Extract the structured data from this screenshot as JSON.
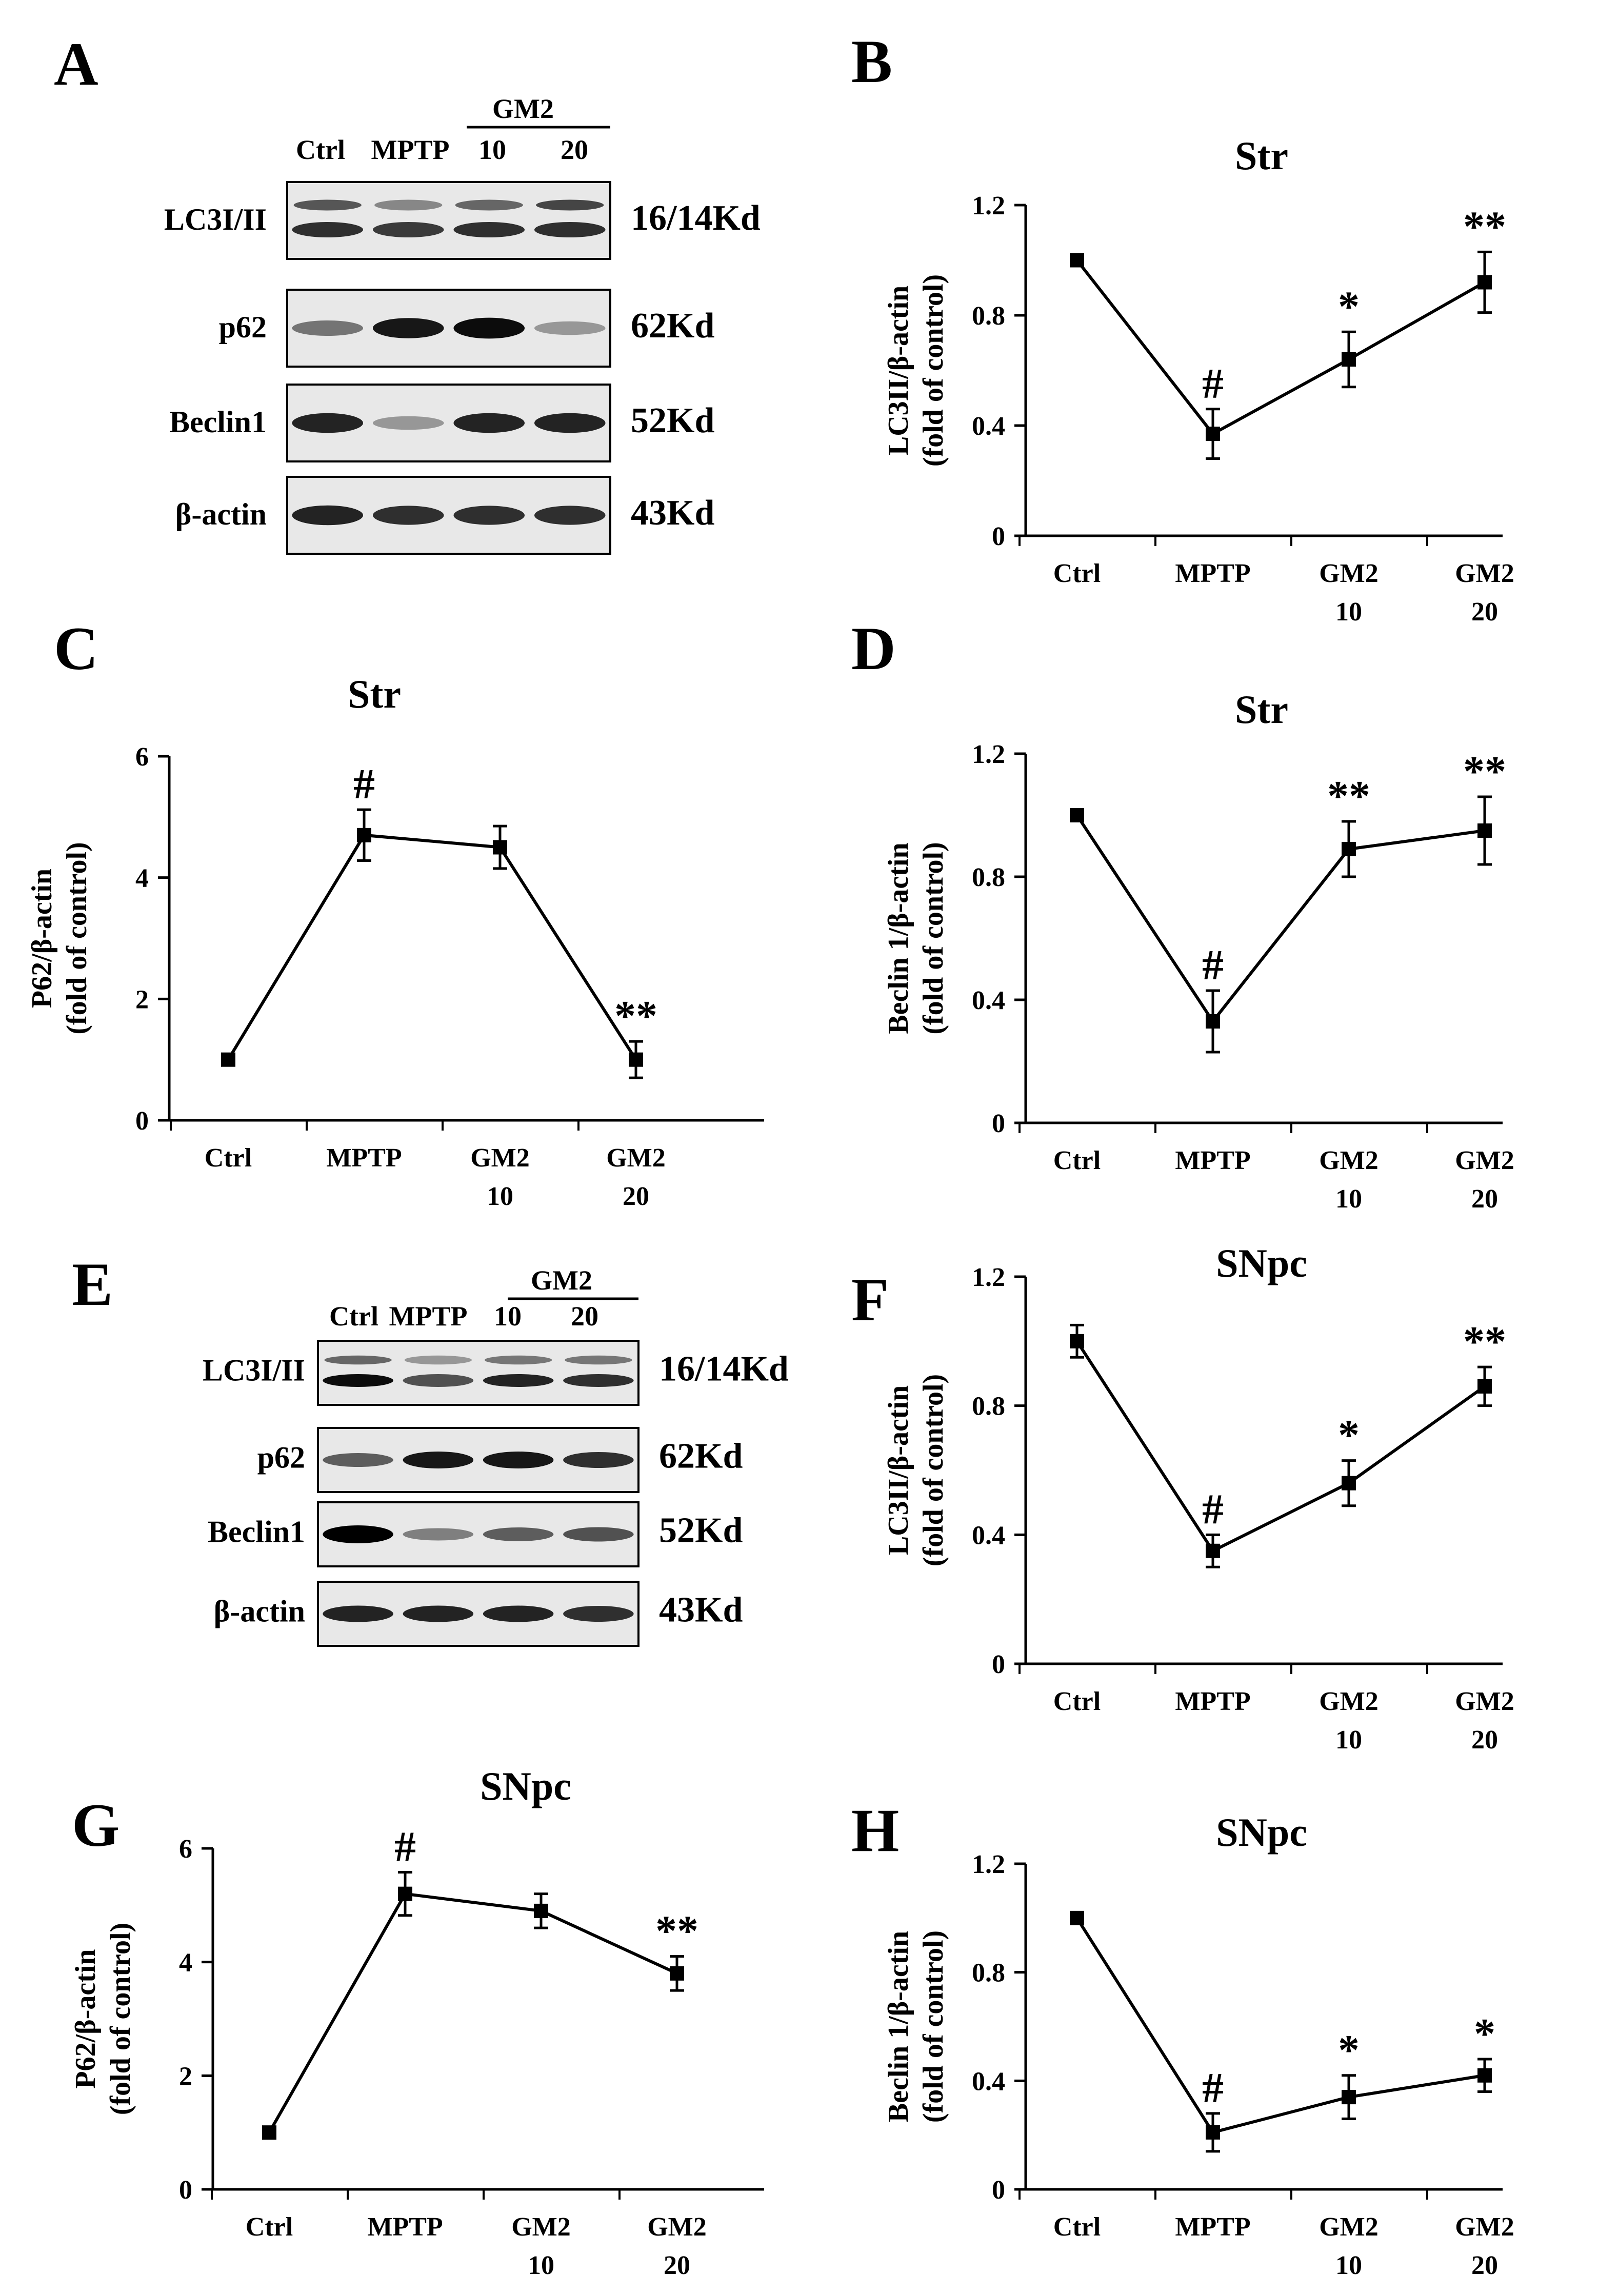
{
  "blots": [
    {
      "panel": "A",
      "group_label": "GM2",
      "lanes": [
        "Ctrl",
        "MPTP",
        "10",
        "20"
      ],
      "rows": [
        {
          "name": "LC3I/II",
          "kd": "16/14Kd"
        },
        {
          "name": "p62",
          "kd": "62Kd"
        },
        {
          "name": "Beclin1",
          "kd": "52Kd"
        },
        {
          "name": "β-actin",
          "kd": "43Kd"
        }
      ]
    },
    {
      "panel": "E",
      "group_label": "GM2",
      "lanes": [
        "Ctrl",
        "MPTP",
        "10",
        "20"
      ],
      "rows": [
        {
          "name": "LC3I/II",
          "kd": "16/14Kd"
        },
        {
          "name": "p62",
          "kd": "62Kd"
        },
        {
          "name": "Beclin1",
          "kd": "52Kd"
        },
        {
          "name": "β-actin",
          "kd": "43Kd"
        }
      ]
    }
  ],
  "chart_data": [
    {
      "panel": "B",
      "type": "line",
      "title": "Str",
      "ylabel": [
        "LC3II/β-actin",
        "(fold of control)"
      ],
      "categories": [
        [
          "Ctrl"
        ],
        [
          "MPTP"
        ],
        [
          "GM2",
          "10"
        ],
        [
          "GM2",
          "20"
        ]
      ],
      "values": [
        1.0,
        0.37,
        0.64,
        0.92
      ],
      "errors": [
        0.0,
        0.09,
        0.1,
        0.11
      ],
      "annotations": [
        "",
        "#",
        "*",
        "**"
      ],
      "ylim": [
        0,
        1.2
      ],
      "yticks": [
        "0",
        "0.4",
        "0.8",
        "1.2"
      ]
    },
    {
      "panel": "C",
      "type": "line",
      "title": "Str",
      "ylabel": [
        "P62/β-actin",
        "(fold of control)"
      ],
      "categories": [
        [
          "Ctrl"
        ],
        [
          "MPTP"
        ],
        [
          "GM2",
          "10"
        ],
        [
          "GM2",
          "20"
        ]
      ],
      "values": [
        1.0,
        4.7,
        4.5,
        1.0
      ],
      "errors": [
        0.0,
        0.42,
        0.35,
        0.3
      ],
      "annotations": [
        "",
        "#",
        "",
        "**"
      ],
      "ylim": [
        0,
        6
      ],
      "yticks": [
        "0",
        "2",
        "4",
        "6"
      ]
    },
    {
      "panel": "D",
      "type": "line",
      "title": "Str",
      "ylabel": [
        "Beclin 1/β-actin",
        "(fold of control)"
      ],
      "categories": [
        [
          "Ctrl"
        ],
        [
          "MPTP"
        ],
        [
          "GM2",
          "10"
        ],
        [
          "GM2",
          "20"
        ]
      ],
      "values": [
        1.0,
        0.33,
        0.89,
        0.95
      ],
      "errors": [
        0.0,
        0.1,
        0.09,
        0.11
      ],
      "annotations": [
        "",
        "#",
        "**",
        "**"
      ],
      "ylim": [
        0,
        1.2
      ],
      "yticks": [
        "0",
        "0.4",
        "0.8",
        "1.2"
      ]
    },
    {
      "panel": "F",
      "type": "line",
      "title": "SNpc",
      "ylabel": [
        "LC3II/β-actin",
        "(fold of control)"
      ],
      "categories": [
        [
          "Ctrl"
        ],
        [
          "MPTP"
        ],
        [
          "GM2",
          "10"
        ],
        [
          "GM2",
          "20"
        ]
      ],
      "values": [
        1.0,
        0.35,
        0.56,
        0.86
      ],
      "errors": [
        0.05,
        0.05,
        0.07,
        0.06
      ],
      "annotations": [
        "",
        "#",
        "*",
        "**"
      ],
      "ylim": [
        0,
        1.2
      ],
      "yticks": [
        "0",
        "0.4",
        "0.8",
        "1.2"
      ]
    },
    {
      "panel": "G",
      "type": "line",
      "title": "SNpc",
      "ylabel": [
        "P62/β-actin",
        "(fold of control)"
      ],
      "categories": [
        [
          "Ctrl"
        ],
        [
          "MPTP"
        ],
        [
          "GM2",
          "10"
        ],
        [
          "GM2",
          "20"
        ]
      ],
      "values": [
        1.0,
        5.2,
        4.9,
        3.8
      ],
      "errors": [
        0.0,
        0.38,
        0.3,
        0.3
      ],
      "annotations": [
        "",
        "#",
        "",
        "**"
      ],
      "ylim": [
        0,
        6
      ],
      "yticks": [
        "0",
        "2",
        "4",
        "6"
      ]
    },
    {
      "panel": "H",
      "type": "line",
      "title": "SNpc",
      "ylabel": [
        "Beclin 1/β-actin",
        "(fold of control)"
      ],
      "categories": [
        [
          "Ctrl"
        ],
        [
          "MPTP"
        ],
        [
          "GM2",
          "10"
        ],
        [
          "GM2",
          "20"
        ]
      ],
      "values": [
        1.0,
        0.21,
        0.34,
        0.42
      ],
      "errors": [
        0.0,
        0.07,
        0.08,
        0.06
      ],
      "annotations": [
        "",
        "#",
        "*",
        "*"
      ],
      "ylim": [
        0,
        1.2
      ],
      "yticks": [
        "0",
        "0.4",
        "0.8",
        "1.2"
      ]
    }
  ]
}
